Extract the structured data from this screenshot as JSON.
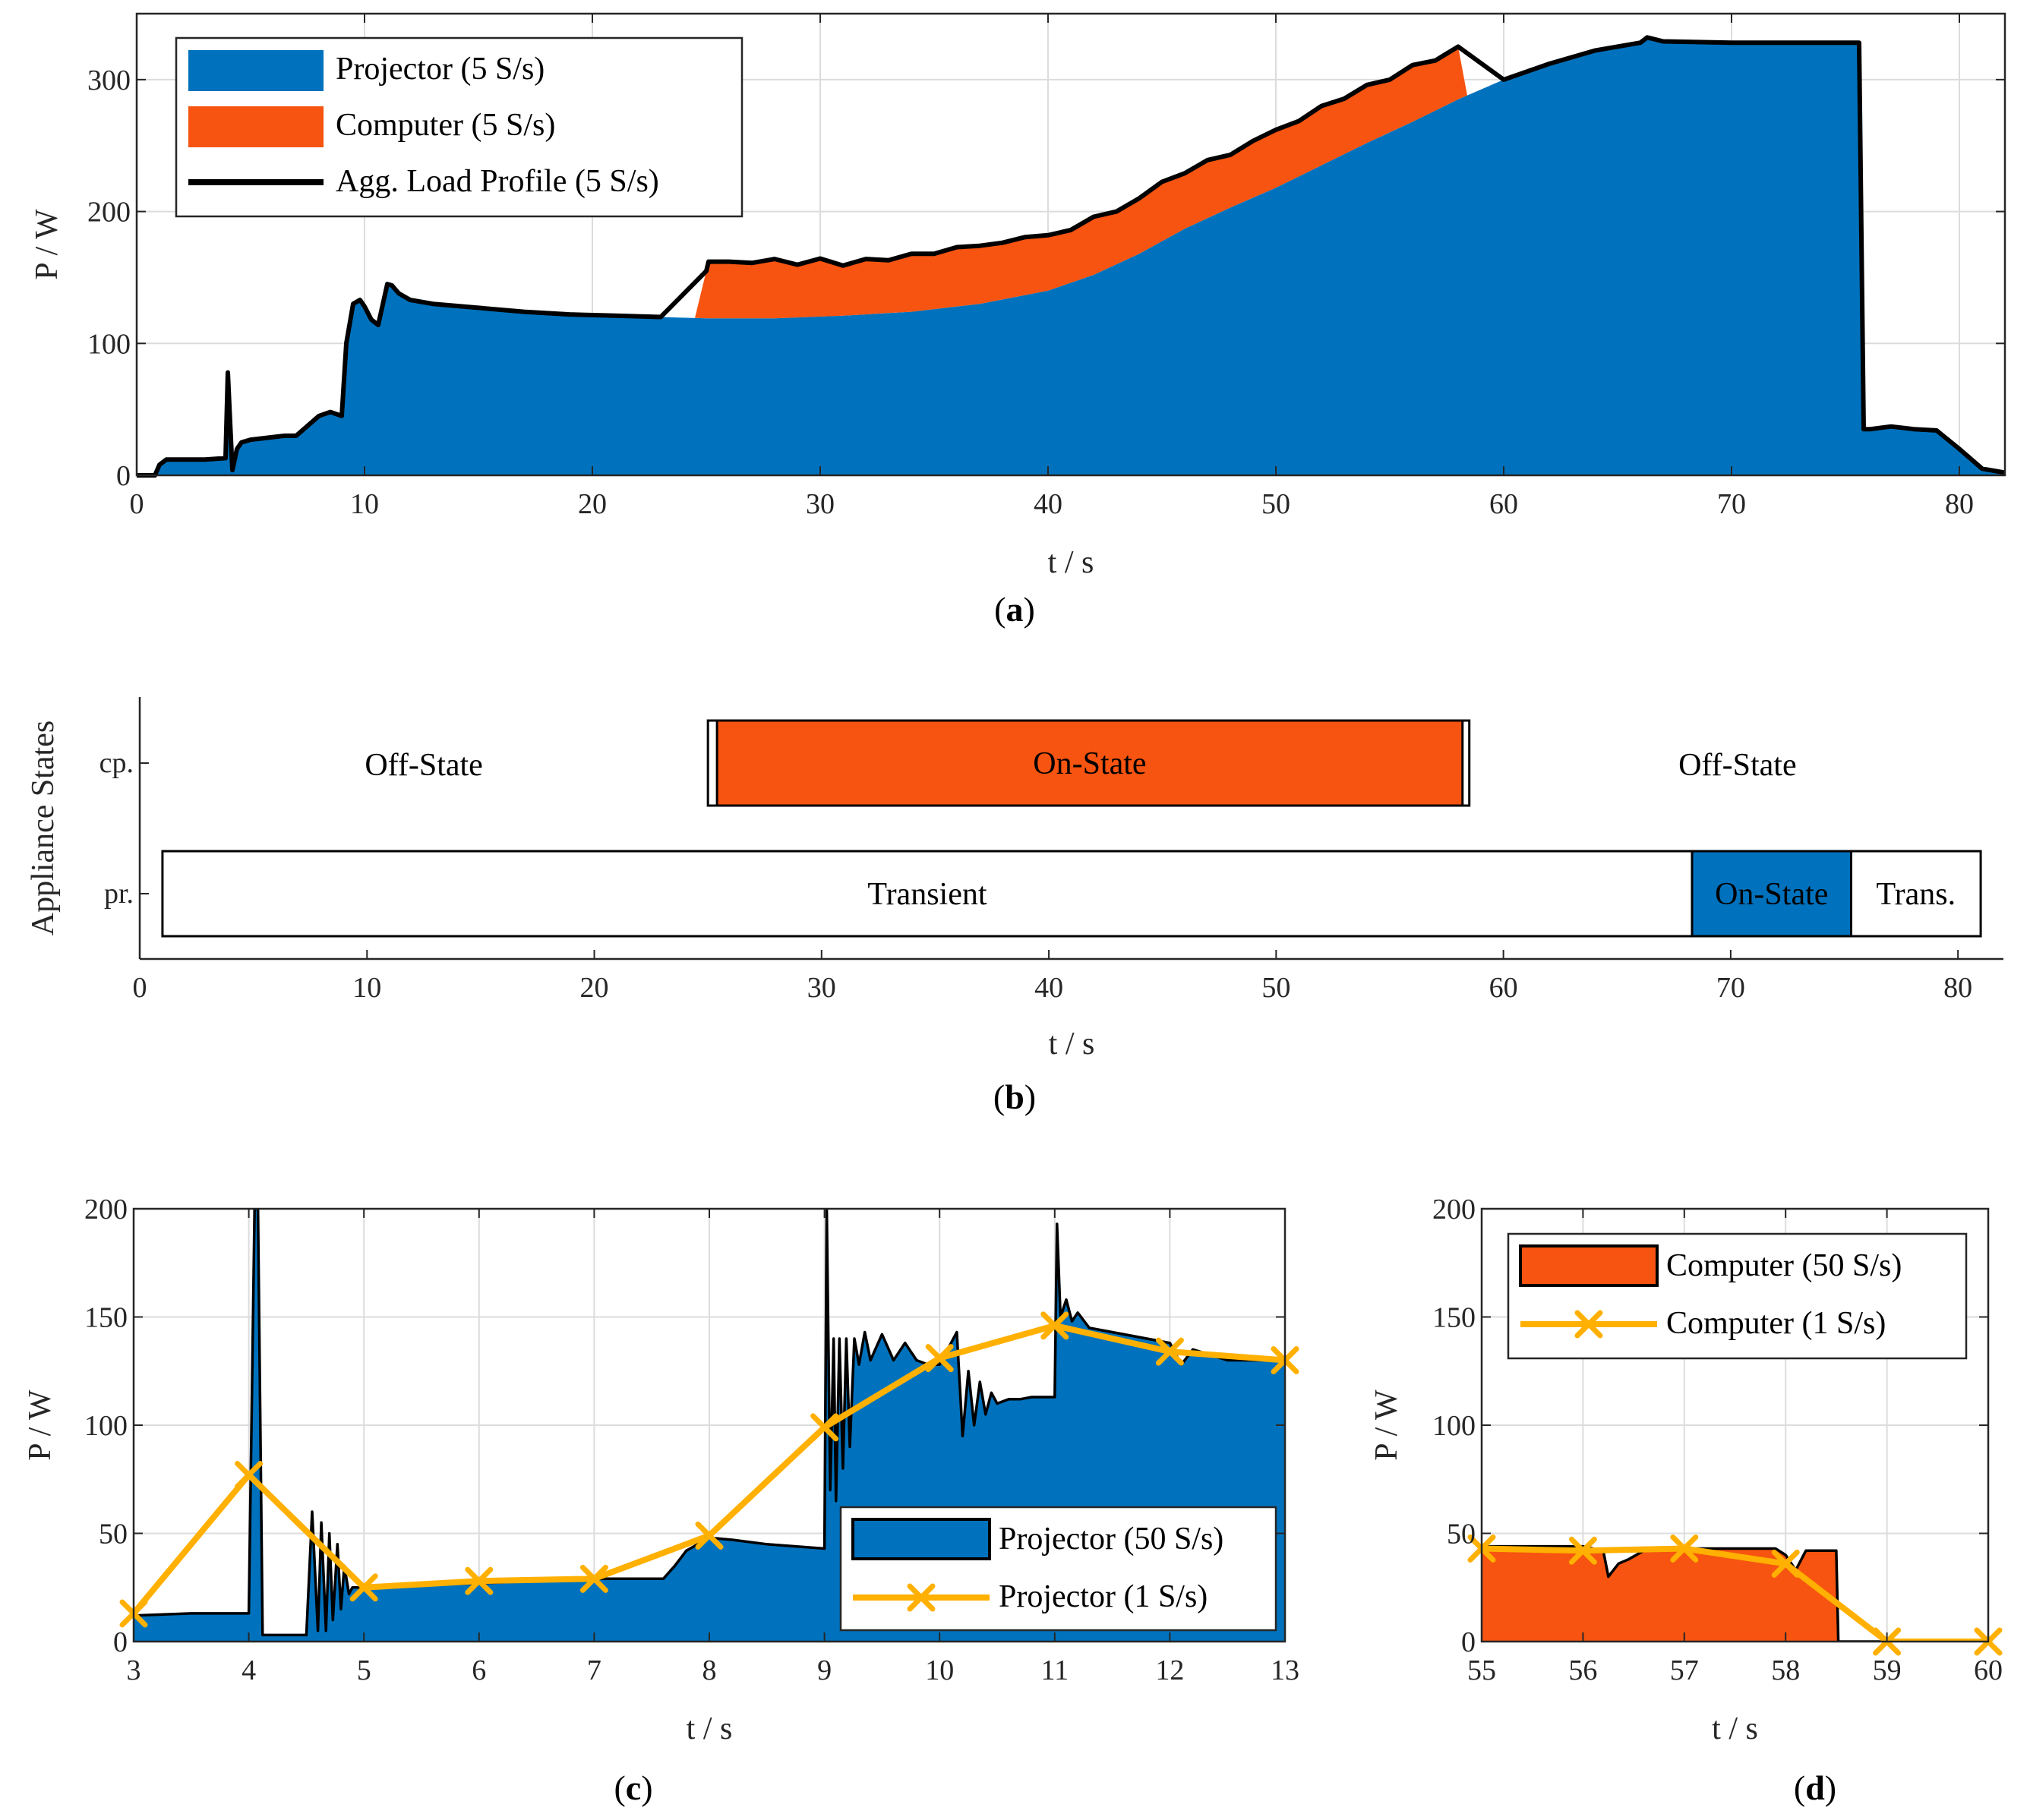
{
  "figure": {
    "captions": {
      "a": "a",
      "b": "b",
      "c": "c",
      "d": "d"
    },
    "colors": {
      "projector": "#0072BD",
      "computer": "#F65410",
      "agg": "#000000",
      "samples_1s": "#FFB000"
    }
  },
  "chart_data": [
    {
      "id": "a",
      "type": "area",
      "xlabel": "t / s",
      "ylabel": "P / W",
      "xlim": [
        0,
        82
      ],
      "ylim": [
        0,
        350
      ],
      "xticks": [
        "0",
        "10",
        "20",
        "30",
        "40",
        "50",
        "60",
        "70",
        "80"
      ],
      "yticks": [
        "0",
        "100",
        "200",
        "300"
      ],
      "grid": true,
      "legend_position": "top-left",
      "legend": [
        "Projector (5 S/s)",
        "Computer (5 S/s)",
        "Agg. Load Profile (5 S/s)"
      ],
      "series": [
        {
          "name": "Projector (5 S/s)",
          "x": [
            0,
            0.8,
            1.0,
            1.3,
            2,
            3,
            3.9,
            4.0,
            4.1,
            4.2,
            4.4,
            4.6,
            5,
            6,
            6.5,
            7,
            8,
            8.5,
            9,
            9.2,
            9.5,
            9.8,
            10,
            10.3,
            10.6,
            11,
            11.2,
            11.5,
            12,
            13,
            15,
            17,
            19,
            21,
            23,
            25,
            28,
            31,
            34,
            37,
            40,
            42,
            44,
            46,
            48,
            50,
            52,
            54,
            56,
            58,
            60,
            62,
            64,
            66,
            66.3,
            67,
            70,
            73,
            75.6,
            75.8,
            76.1,
            77,
            78,
            79,
            80,
            81,
            82
          ],
          "values": [
            0,
            0,
            8,
            12,
            12,
            12,
            13,
            78,
            40,
            4,
            20,
            25,
            27,
            29,
            30,
            30,
            45,
            48,
            45,
            100,
            130,
            133,
            128,
            118,
            114,
            145,
            144,
            138,
            133,
            130,
            127,
            124,
            122,
            121,
            120,
            119,
            119,
            121,
            124,
            130,
            140,
            152,
            168,
            187,
            203,
            218,
            235,
            252,
            268,
            285,
            300,
            312,
            322,
            328,
            332,
            329,
            328,
            328,
            328,
            35,
            35,
            37,
            35,
            34,
            20,
            5,
            2
          ]
        },
        {
          "name": "Computer (5 S/s)",
          "x": [
            24.5,
            25.1,
            26,
            27,
            28,
            29,
            30,
            31,
            32,
            33,
            34,
            35,
            36,
            37,
            38,
            39,
            40,
            41,
            42,
            43,
            44,
            45,
            46,
            47,
            48,
            49,
            50,
            51,
            52,
            53,
            54,
            55,
            56,
            57,
            58,
            58.4
          ],
          "values": [
            0,
            43,
            43,
            42,
            45,
            40,
            44,
            38,
            42,
            40,
            44,
            42,
            45,
            44,
            43,
            44,
            42,
            40,
            44,
            40,
            42,
            45,
            42,
            44,
            40,
            43,
            44,
            42,
            45,
            42,
            44,
            40,
            43,
            38,
            40,
            0
          ]
        }
      ]
    },
    {
      "id": "b",
      "type": "bar",
      "orientation": "horizontal",
      "xlabel": "t / s",
      "ylabel": "Appliance States",
      "xlim": [
        0,
        82
      ],
      "xticks": [
        "0",
        "10",
        "20",
        "30",
        "40",
        "50",
        "60",
        "70",
        "80"
      ],
      "categories": [
        "cp.",
        "pr."
      ],
      "grid": false,
      "bars": [
        {
          "row": "cp.",
          "start": 25.0,
          "end": 58.5,
          "label": "",
          "fill": "white"
        },
        {
          "row": "cp.",
          "start": 25.4,
          "end": 58.2,
          "label": "On-State",
          "fill": "computer"
        },
        {
          "row": "pr.",
          "start": 1.0,
          "end": 68.3,
          "label": "Transient",
          "fill": "white"
        },
        {
          "row": "pr.",
          "start": 68.3,
          "end": 75.3,
          "label": "On-State",
          "fill": "projector"
        },
        {
          "row": "pr.",
          "start": 75.3,
          "end": 81.0,
          "label": "Trans.",
          "fill": "white"
        }
      ],
      "annotations": [
        {
          "row": "cp.",
          "x": 12.5,
          "text": "Off-State"
        },
        {
          "row": "cp.",
          "x": 70.3,
          "text": "Off-State"
        }
      ]
    },
    {
      "id": "c",
      "type": "area",
      "xlabel": "t / s",
      "ylabel": "P / W",
      "xlim": [
        3,
        13
      ],
      "ylim": [
        0,
        200
      ],
      "xticks": [
        "3",
        "4",
        "5",
        "6",
        "7",
        "8",
        "9",
        "10",
        "11",
        "12",
        "13"
      ],
      "yticks": [
        "0",
        "50",
        "100",
        "150",
        "200"
      ],
      "grid": true,
      "legend_position": "bottom-right",
      "legend": [
        "Projector (50 S/s)",
        "Projector (1 S/s)"
      ],
      "series": [
        {
          "name": "Projector (50 S/s)",
          "x": [
            3,
            3.5,
            4.0,
            4.05,
            4.08,
            4.12,
            4.15,
            4.5,
            4.55,
            4.6,
            4.63,
            4.67,
            4.7,
            4.73,
            4.77,
            4.8,
            4.83,
            4.87,
            4.9,
            5.0,
            5.5,
            6,
            6.5,
            7,
            7.6,
            7.7,
            7.8,
            8.0,
            8.2,
            8.5,
            9.0,
            9.02,
            9.05,
            9.08,
            9.1,
            9.13,
            9.16,
            9.19,
            9.22,
            9.26,
            9.3,
            9.35,
            9.4,
            9.5,
            9.6,
            9.7,
            9.8,
            9.9,
            10.0,
            10.15,
            10.2,
            10.25,
            10.3,
            10.35,
            10.4,
            10.45,
            10.5,
            10.6,
            10.7,
            10.8,
            11.0,
            11.02,
            11.05,
            11.1,
            11.15,
            11.2,
            11.3,
            11.5,
            11.8,
            12.0,
            12.1,
            12.2,
            12.5,
            13.0
          ],
          "values": [
            12,
            13,
            13,
            200,
            200,
            3,
            3,
            3,
            60,
            5,
            55,
            5,
            50,
            10,
            45,
            15,
            35,
            22,
            25,
            25,
            26,
            27,
            28,
            29,
            29,
            35,
            42,
            48,
            47,
            45,
            43,
            200,
            70,
            140,
            65,
            140,
            80,
            140,
            90,
            140,
            128,
            143,
            130,
            142,
            130,
            138,
            130,
            128,
            128,
            143,
            95,
            125,
            100,
            120,
            105,
            115,
            110,
            112,
            112,
            113,
            113,
            193,
            150,
            158,
            148,
            152,
            145,
            143,
            140,
            138,
            128,
            135,
            130,
            130
          ]
        },
        {
          "name": "Projector (1 S/s)",
          "x": [
            3,
            4,
            5,
            6,
            7,
            8,
            9,
            10,
            11,
            12,
            13
          ],
          "values": [
            13,
            77,
            25,
            28,
            29,
            49,
            99,
            131,
            146,
            134,
            130
          ]
        }
      ]
    },
    {
      "id": "d",
      "type": "area",
      "xlabel": "t / s",
      "ylabel": "P / W",
      "xlim": [
        55,
        60
      ],
      "ylim": [
        0,
        200
      ],
      "xticks": [
        "55",
        "56",
        "57",
        "58",
        "59",
        "60"
      ],
      "yticks": [
        "0",
        "50",
        "100",
        "150",
        "200"
      ],
      "grid": true,
      "legend_position": "top-left",
      "legend": [
        "Computer (50 S/s)",
        "Computer (1 S/s)"
      ],
      "series": [
        {
          "name": "Computer (50 S/s)",
          "x": [
            55,
            55.5,
            56.0,
            56.2,
            56.25,
            56.35,
            56.45,
            56.6,
            57.0,
            57.5,
            57.9,
            58.0,
            58.1,
            58.2,
            58.5,
            58.52,
            60
          ],
          "values": [
            44,
            44,
            44,
            42,
            30,
            36,
            38,
            42,
            43,
            43,
            43,
            40,
            33,
            42,
            42,
            0,
            0
          ]
        },
        {
          "name": "Computer (1 S/s)",
          "x": [
            55,
            56,
            57,
            58,
            59,
            60
          ],
          "values": [
            43,
            42,
            43,
            36,
            0,
            0
          ]
        }
      ]
    }
  ]
}
